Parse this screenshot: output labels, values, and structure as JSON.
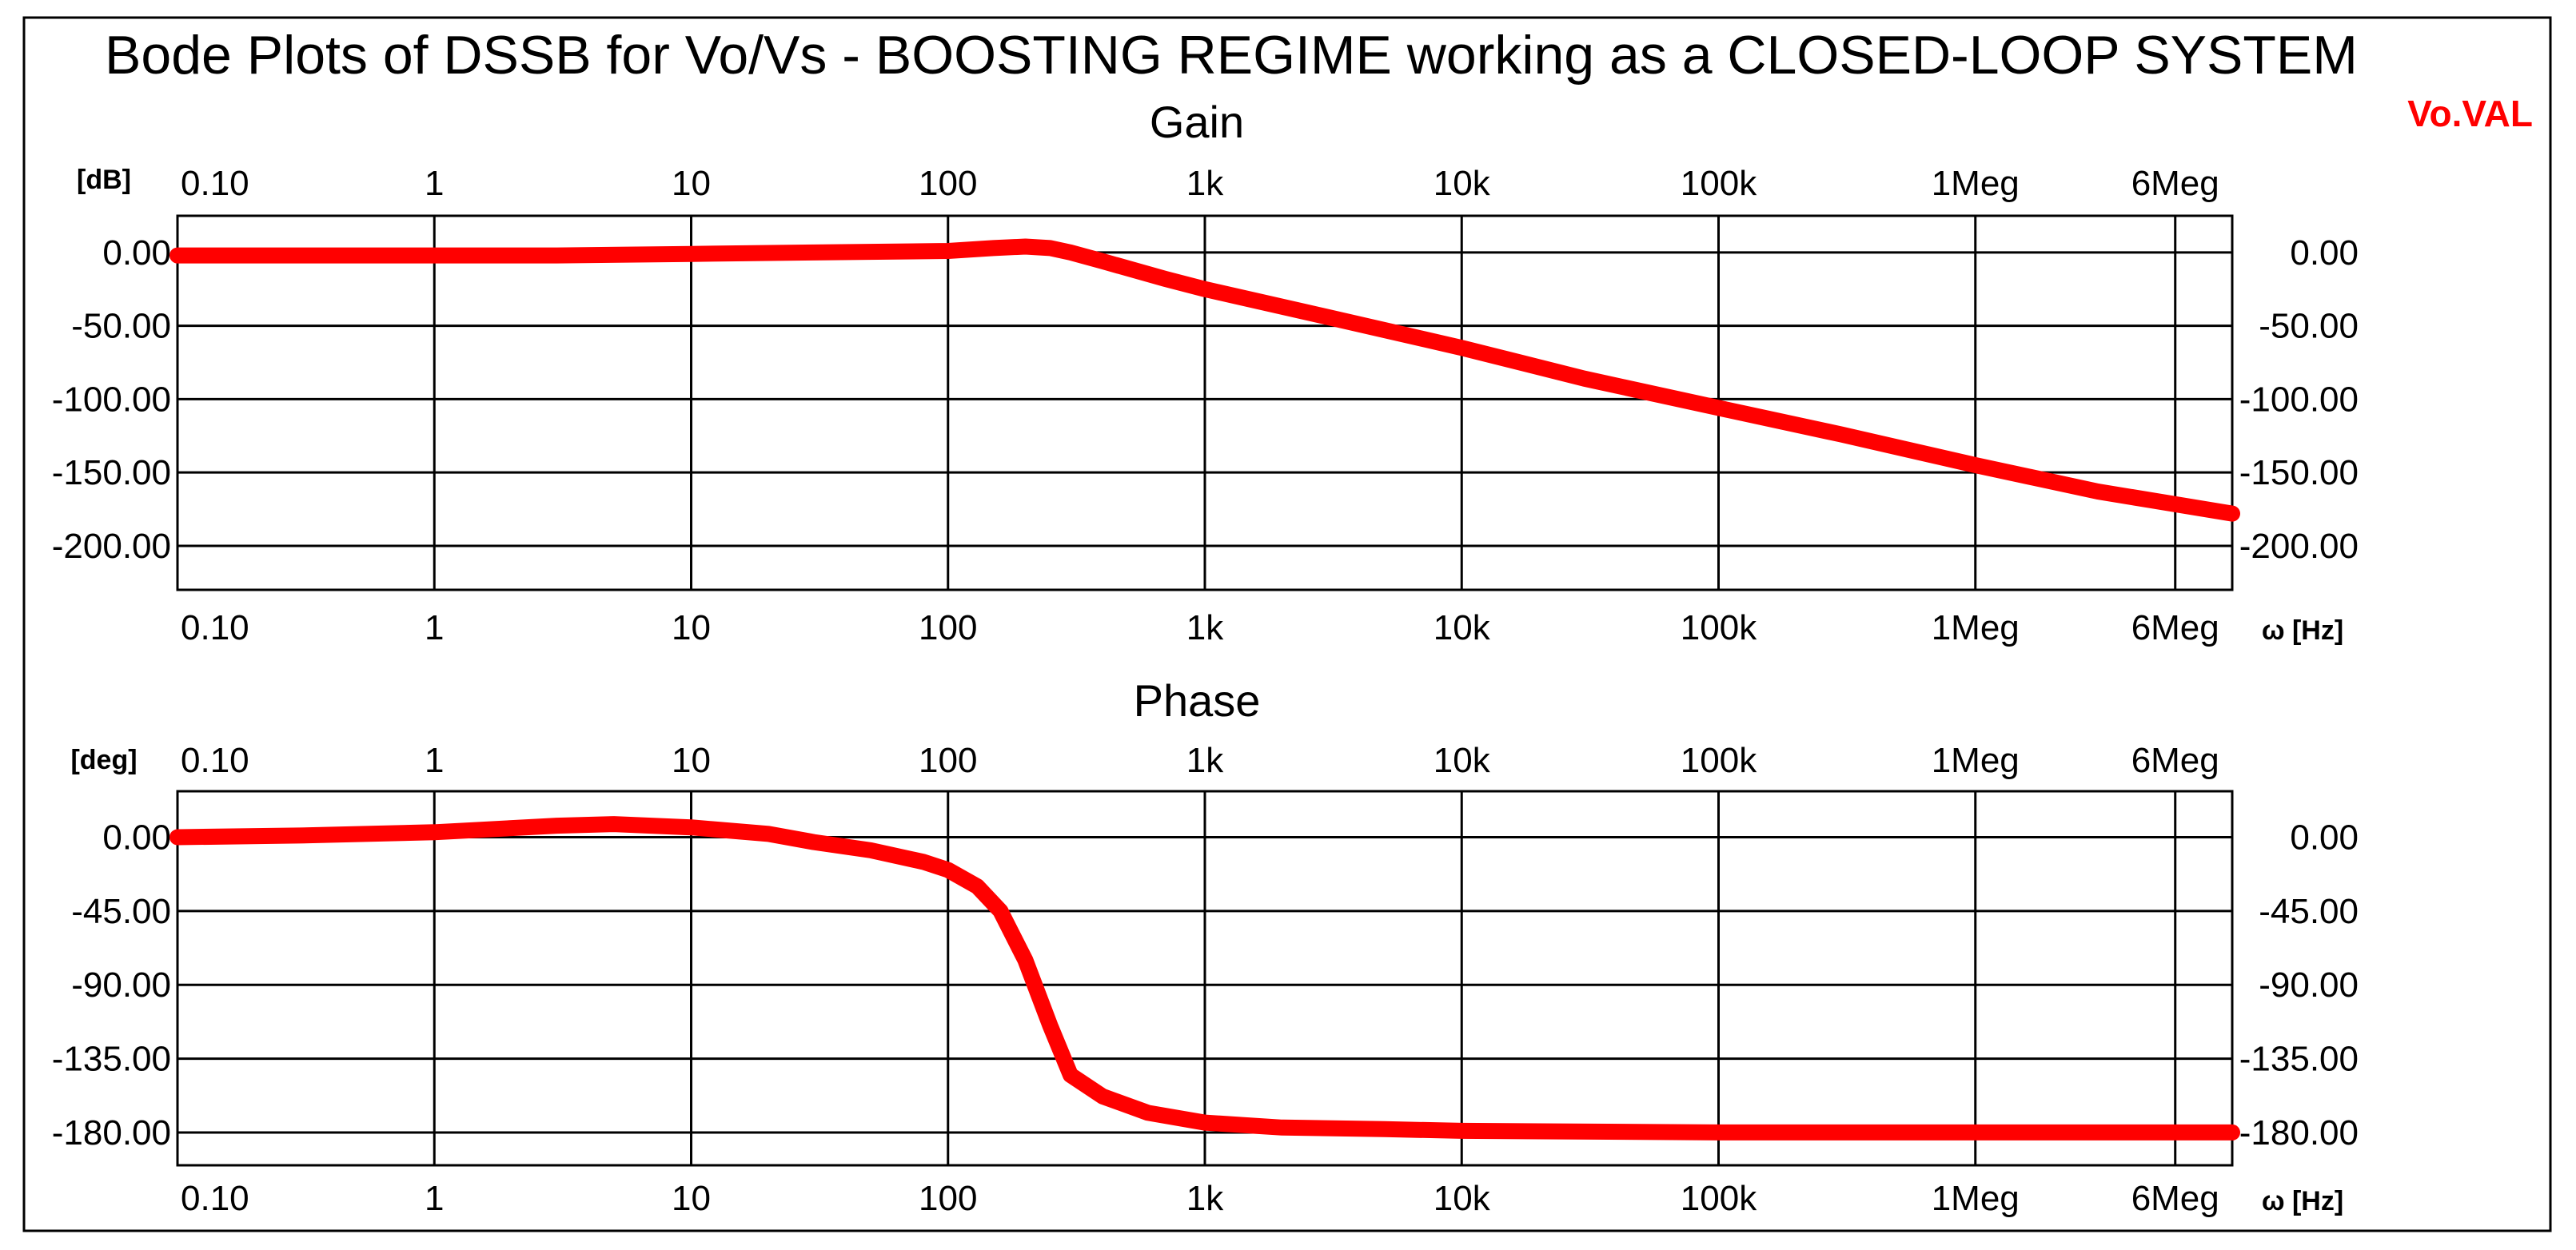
{
  "figure": {
    "title": "Bode Plots of DSSB for Vo/Vs  - BOOSTING REGIME working as a CLOSED-LOOP SYSTEM",
    "legend_label": "Vo.VAL",
    "curve_color": "#ff0000",
    "x_unit_label": "ω [Hz]"
  },
  "chart_data": [
    {
      "type": "line",
      "title": "Gain",
      "ylabel": "[dB]",
      "xlabel": "ω [Hz]",
      "x_scale": "log",
      "xlim": [
        0.1,
        10000000
      ],
      "ylim": [
        -230,
        25
      ],
      "grid": true,
      "x_ticks": [
        {
          "value": 0.1,
          "label": "0.10"
        },
        {
          "value": 1,
          "label": "1"
        },
        {
          "value": 10,
          "label": "10"
        },
        {
          "value": 100,
          "label": "100"
        },
        {
          "value": 1000,
          "label": "1k"
        },
        {
          "value": 10000,
          "label": "10k"
        },
        {
          "value": 100000,
          "label": "100k"
        },
        {
          "value": 1000000,
          "label": "1Meg"
        },
        {
          "value": 6000000,
          "label": "6Meg"
        }
      ],
      "y_ticks": [
        {
          "value": 0,
          "label": "0.00"
        },
        {
          "value": -50,
          "label": "-50.00"
        },
        {
          "value": -100,
          "label": "-100.00"
        },
        {
          "value": -150,
          "label": "-150.00"
        },
        {
          "value": -200,
          "label": "-200.00"
        }
      ],
      "series": [
        {
          "name": "Vo.VAL",
          "x": [
            0.1,
            1,
            3,
            10,
            30,
            100,
            150,
            200,
            250,
            300,
            400,
            700,
            1000,
            3000,
            10000,
            30000,
            100000,
            300000,
            1000000,
            3000000,
            10000000
          ],
          "y": [
            -2,
            -2,
            -2,
            -1,
            0,
            1,
            3,
            4,
            3,
            0,
            -6,
            -18,
            -25,
            -44,
            -65,
            -86,
            -106,
            -124,
            -145,
            -163,
            -178
          ]
        }
      ]
    },
    {
      "type": "line",
      "title": "Phase",
      "ylabel": "[deg]",
      "xlabel": "ω [Hz]",
      "x_scale": "log",
      "xlim": [
        0.1,
        10000000
      ],
      "ylim": [
        -200,
        28
      ],
      "grid": true,
      "x_ticks": [
        {
          "value": 0.1,
          "label": "0.10"
        },
        {
          "value": 1,
          "label": "1"
        },
        {
          "value": 10,
          "label": "10"
        },
        {
          "value": 100,
          "label": "100"
        },
        {
          "value": 1000,
          "label": "1k"
        },
        {
          "value": 10000,
          "label": "10k"
        },
        {
          "value": 100000,
          "label": "100k"
        },
        {
          "value": 1000000,
          "label": "1Meg"
        },
        {
          "value": 6000000,
          "label": "6Meg"
        }
      ],
      "y_ticks": [
        {
          "value": 0,
          "label": "0.00"
        },
        {
          "value": -45,
          "label": "-45.00"
        },
        {
          "value": -90,
          "label": "-90.00"
        },
        {
          "value": -135,
          "label": "-135.00"
        },
        {
          "value": -180,
          "label": "-180.00"
        }
      ],
      "series": [
        {
          "name": "Vo.VAL",
          "x": [
            0.1,
            0.3,
            1,
            3,
            5,
            10,
            20,
            30,
            50,
            80,
            100,
            130,
            160,
            200,
            250,
            300,
            400,
            600,
            1000,
            2000,
            5000,
            10000,
            100000,
            1000000,
            10000000
          ],
          "y": [
            0,
            1,
            3,
            7,
            8,
            6,
            2,
            -3,
            -8,
            -15,
            -20,
            -30,
            -45,
            -75,
            -115,
            -145,
            -158,
            -168,
            -174,
            -177,
            -178,
            -179,
            -180,
            -180,
            -180
          ]
        }
      ]
    }
  ]
}
